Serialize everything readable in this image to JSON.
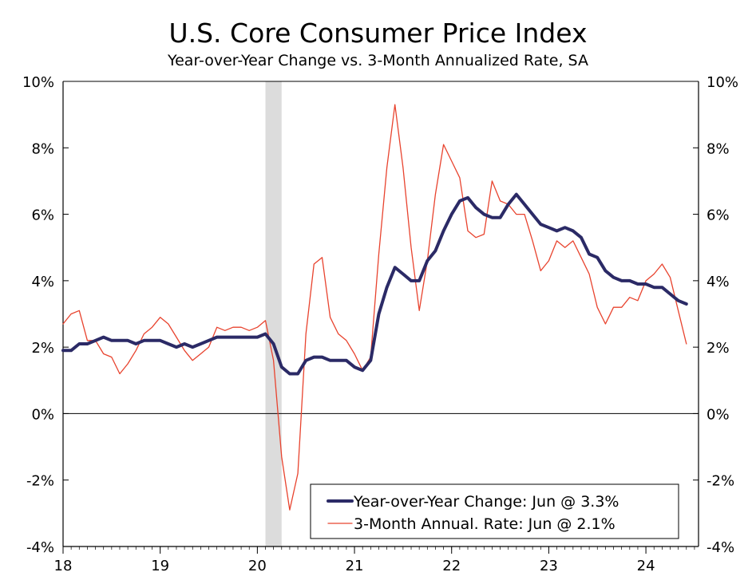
{
  "chart_data": {
    "type": "line",
    "title": "U.S. Core Consumer Price Index",
    "subtitle": "Year-over-Year Change vs. 3-Month Annualized Rate, SA",
    "xlabel": "",
    "ylabel": "",
    "ylim": [
      -4,
      10
    ],
    "y_ticks": [
      "10%",
      "8%",
      "6%",
      "4%",
      "2%",
      "0%",
      "-2%",
      "-4%"
    ],
    "x_ticks": [
      "18",
      "19",
      "20",
      "21",
      "22",
      "23",
      "24"
    ],
    "recession_shading": {
      "start": "2020-02",
      "end": "2020-04"
    },
    "legend_position": "bottom-right",
    "grid": false,
    "series": [
      {
        "name": "Year-over-Year Change: Jun @ 3.3%",
        "color": "#2b2a66",
        "points": [
          [
            "2018-01",
            1.9
          ],
          [
            "2018-02",
            1.9
          ],
          [
            "2018-03",
            2.1
          ],
          [
            "2018-04",
            2.1
          ],
          [
            "2018-05",
            2.2
          ],
          [
            "2018-06",
            2.3
          ],
          [
            "2018-07",
            2.2
          ],
          [
            "2018-08",
            2.2
          ],
          [
            "2018-09",
            2.2
          ],
          [
            "2018-10",
            2.1
          ],
          [
            "2018-11",
            2.2
          ],
          [
            "2018-12",
            2.2
          ],
          [
            "2019-01",
            2.2
          ],
          [
            "2019-02",
            2.1
          ],
          [
            "2019-03",
            2.0
          ],
          [
            "2019-04",
            2.1
          ],
          [
            "2019-05",
            2.0
          ],
          [
            "2019-06",
            2.1
          ],
          [
            "2019-07",
            2.2
          ],
          [
            "2019-08",
            2.3
          ],
          [
            "2019-09",
            2.3
          ],
          [
            "2019-10",
            2.3
          ],
          [
            "2019-11",
            2.3
          ],
          [
            "2019-12",
            2.3
          ],
          [
            "2020-01",
            2.3
          ],
          [
            "2020-02",
            2.4
          ],
          [
            "2020-03",
            2.1
          ],
          [
            "2020-04",
            1.4
          ],
          [
            "2020-05",
            1.2
          ],
          [
            "2020-06",
            1.2
          ],
          [
            "2020-07",
            1.6
          ],
          [
            "2020-08",
            1.7
          ],
          [
            "2020-09",
            1.7
          ],
          [
            "2020-10",
            1.6
          ],
          [
            "2020-11",
            1.6
          ],
          [
            "2020-12",
            1.6
          ],
          [
            "2021-01",
            1.4
          ],
          [
            "2021-02",
            1.3
          ],
          [
            "2021-03",
            1.6
          ],
          [
            "2021-04",
            3.0
          ],
          [
            "2021-05",
            3.8
          ],
          [
            "2021-06",
            4.4
          ],
          [
            "2021-07",
            4.2
          ],
          [
            "2021-08",
            4.0
          ],
          [
            "2021-09",
            4.0
          ],
          [
            "2021-10",
            4.6
          ],
          [
            "2021-11",
            4.9
          ],
          [
            "2021-12",
            5.5
          ],
          [
            "2022-01",
            6.0
          ],
          [
            "2022-02",
            6.4
          ],
          [
            "2022-03",
            6.5
          ],
          [
            "2022-04",
            6.2
          ],
          [
            "2022-05",
            6.0
          ],
          [
            "2022-06",
            5.9
          ],
          [
            "2022-07",
            5.9
          ],
          [
            "2022-08",
            6.3
          ],
          [
            "2022-09",
            6.6
          ],
          [
            "2022-10",
            6.3
          ],
          [
            "2022-11",
            6.0
          ],
          [
            "2022-12",
            5.7
          ],
          [
            "2023-01",
            5.6
          ],
          [
            "2023-02",
            5.5
          ],
          [
            "2023-03",
            5.6
          ],
          [
            "2023-04",
            5.5
          ],
          [
            "2023-05",
            5.3
          ],
          [
            "2023-06",
            4.8
          ],
          [
            "2023-07",
            4.7
          ],
          [
            "2023-08",
            4.3
          ],
          [
            "2023-09",
            4.1
          ],
          [
            "2023-10",
            4.0
          ],
          [
            "2023-11",
            4.0
          ],
          [
            "2023-12",
            3.9
          ],
          [
            "2024-01",
            3.9
          ],
          [
            "2024-02",
            3.8
          ],
          [
            "2024-03",
            3.8
          ],
          [
            "2024-04",
            3.6
          ],
          [
            "2024-05",
            3.4
          ],
          [
            "2024-06",
            3.3
          ]
        ]
      },
      {
        "name": "3-Month Annual. Rate: Jun @ 2.1%",
        "color": "#e8432e",
        "points": [
          [
            "2018-01",
            2.7
          ],
          [
            "2018-02",
            3.0
          ],
          [
            "2018-03",
            3.1
          ],
          [
            "2018-04",
            2.2
          ],
          [
            "2018-05",
            2.2
          ],
          [
            "2018-06",
            1.8
          ],
          [
            "2018-07",
            1.7
          ],
          [
            "2018-08",
            1.2
          ],
          [
            "2018-09",
            1.5
          ],
          [
            "2018-10",
            1.9
          ],
          [
            "2018-11",
            2.4
          ],
          [
            "2018-12",
            2.6
          ],
          [
            "2019-01",
            2.9
          ],
          [
            "2019-02",
            2.7
          ],
          [
            "2019-03",
            2.3
          ],
          [
            "2019-04",
            1.9
          ],
          [
            "2019-05",
            1.6
          ],
          [
            "2019-06",
            1.8
          ],
          [
            "2019-07",
            2.0
          ],
          [
            "2019-08",
            2.6
          ],
          [
            "2019-09",
            2.5
          ],
          [
            "2019-10",
            2.6
          ],
          [
            "2019-11",
            2.6
          ],
          [
            "2019-12",
            2.5
          ],
          [
            "2020-01",
            2.6
          ],
          [
            "2020-02",
            2.8
          ],
          [
            "2020-03",
            1.6
          ],
          [
            "2020-04",
            -1.3
          ],
          [
            "2020-05",
            -2.9
          ],
          [
            "2020-06",
            -1.8
          ],
          [
            "2020-07",
            2.4
          ],
          [
            "2020-08",
            4.5
          ],
          [
            "2020-09",
            4.7
          ],
          [
            "2020-10",
            2.9
          ],
          [
            "2020-11",
            2.4
          ],
          [
            "2020-12",
            2.2
          ],
          [
            "2021-01",
            1.8
          ],
          [
            "2021-02",
            1.3
          ],
          [
            "2021-03",
            1.7
          ],
          [
            "2021-04",
            4.8
          ],
          [
            "2021-05",
            7.4
          ],
          [
            "2021-06",
            9.3
          ],
          [
            "2021-07",
            7.4
          ],
          [
            "2021-08",
            5.0
          ],
          [
            "2021-09",
            3.1
          ],
          [
            "2021-10",
            4.6
          ],
          [
            "2021-11",
            6.6
          ],
          [
            "2021-12",
            8.1
          ],
          [
            "2022-01",
            7.6
          ],
          [
            "2022-02",
            7.1
          ],
          [
            "2022-03",
            5.5
          ],
          [
            "2022-04",
            5.3
          ],
          [
            "2022-05",
            5.4
          ],
          [
            "2022-06",
            7.0
          ],
          [
            "2022-07",
            6.4
          ],
          [
            "2022-08",
            6.3
          ],
          [
            "2022-09",
            6.0
          ],
          [
            "2022-10",
            6.0
          ],
          [
            "2022-11",
            5.2
          ],
          [
            "2022-12",
            4.3
          ],
          [
            "2023-01",
            4.6
          ],
          [
            "2023-02",
            5.2
          ],
          [
            "2023-03",
            5.0
          ],
          [
            "2023-04",
            5.2
          ],
          [
            "2023-05",
            4.7
          ],
          [
            "2023-06",
            4.2
          ],
          [
            "2023-07",
            3.2
          ],
          [
            "2023-08",
            2.7
          ],
          [
            "2023-09",
            3.2
          ],
          [
            "2023-10",
            3.2
          ],
          [
            "2023-11",
            3.5
          ],
          [
            "2023-12",
            3.4
          ],
          [
            "2024-01",
            4.0
          ],
          [
            "2024-02",
            4.2
          ],
          [
            "2024-03",
            4.5
          ],
          [
            "2024-04",
            4.1
          ],
          [
            "2024-05",
            3.1
          ],
          [
            "2024-06",
            2.1
          ]
        ]
      }
    ]
  }
}
